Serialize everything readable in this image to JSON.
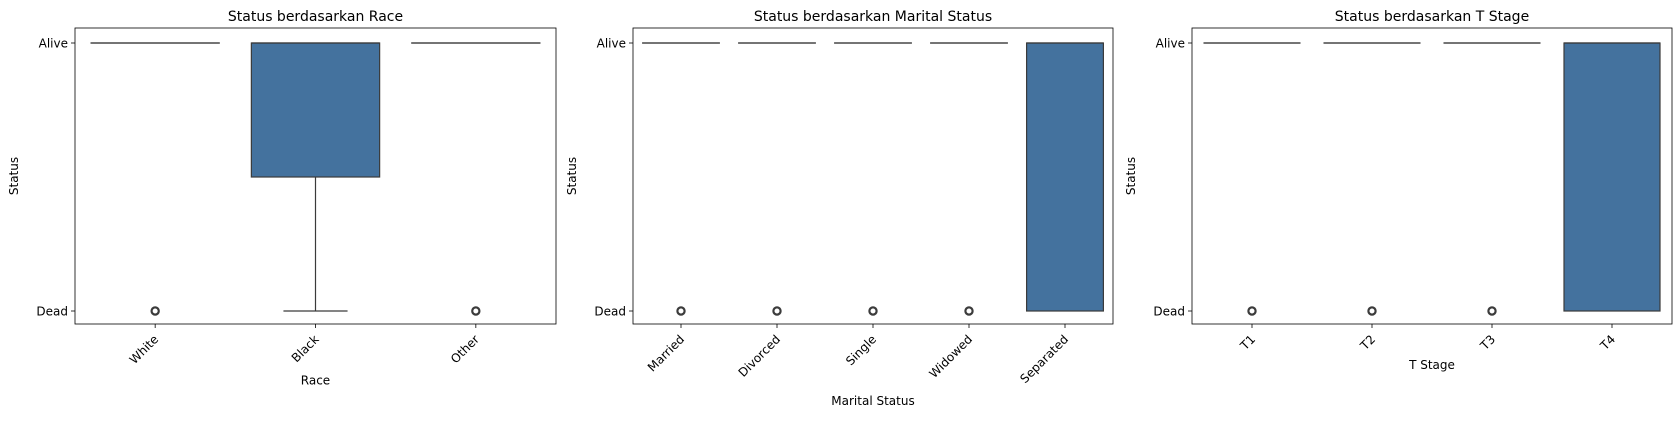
{
  "theme": {
    "box_fill": "#44729e",
    "line": "#3b3b3b",
    "frame": "#000000"
  },
  "chart_data": [
    {
      "type": "box",
      "title": "Status berdasarkan Race",
      "xlabel": "Race",
      "ylabel": "Status",
      "y_categories": [
        "Dead",
        "Alive"
      ],
      "categories": [
        "White",
        "Black",
        "Other"
      ],
      "boxes": [
        {
          "q1": 1,
          "median": 1,
          "q3": 1,
          "whisker_low": 1,
          "whisker_high": 1,
          "outliers": [
            0
          ]
        },
        {
          "q1": 0.5,
          "median": 1,
          "q3": 1,
          "whisker_low": 0,
          "whisker_high": 1,
          "outliers": []
        },
        {
          "q1": 1,
          "median": 1,
          "q3": 1,
          "whisker_low": 1,
          "whisker_high": 1,
          "outliers": [
            0
          ]
        }
      ]
    },
    {
      "type": "box",
      "title": "Status berdasarkan Marital Status",
      "xlabel": "Marital Status",
      "ylabel": "Status",
      "y_categories": [
        "Dead",
        "Alive"
      ],
      "categories": [
        "Married",
        "Divorced",
        "Single",
        "Widowed",
        "Separated"
      ],
      "boxes": [
        {
          "q1": 1,
          "median": 1,
          "q3": 1,
          "whisker_low": 1,
          "whisker_high": 1,
          "outliers": [
            0
          ]
        },
        {
          "q1": 1,
          "median": 1,
          "q3": 1,
          "whisker_low": 1,
          "whisker_high": 1,
          "outliers": [
            0
          ]
        },
        {
          "q1": 1,
          "median": 1,
          "q3": 1,
          "whisker_low": 1,
          "whisker_high": 1,
          "outliers": [
            0
          ]
        },
        {
          "q1": 1,
          "median": 1,
          "q3": 1,
          "whisker_low": 1,
          "whisker_high": 1,
          "outliers": [
            0
          ]
        },
        {
          "q1": 0,
          "median": 1,
          "q3": 1,
          "whisker_low": 0,
          "whisker_high": 1,
          "outliers": []
        }
      ]
    },
    {
      "type": "box",
      "title": "Status berdasarkan T Stage",
      "xlabel": "T Stage",
      "ylabel": "Status",
      "y_categories": [
        "Dead",
        "Alive"
      ],
      "categories": [
        "T1",
        "T2",
        "T3",
        "T4"
      ],
      "boxes": [
        {
          "q1": 1,
          "median": 1,
          "q3": 1,
          "whisker_low": 1,
          "whisker_high": 1,
          "outliers": [
            0
          ]
        },
        {
          "q1": 1,
          "median": 1,
          "q3": 1,
          "whisker_low": 1,
          "whisker_high": 1,
          "outliers": [
            0
          ]
        },
        {
          "q1": 1,
          "median": 1,
          "q3": 1,
          "whisker_low": 1,
          "whisker_high": 1,
          "outliers": [
            0
          ]
        },
        {
          "q1": 0,
          "median": 1,
          "q3": 1,
          "whisker_low": 0,
          "whisker_high": 1,
          "outliers": []
        }
      ]
    }
  ]
}
